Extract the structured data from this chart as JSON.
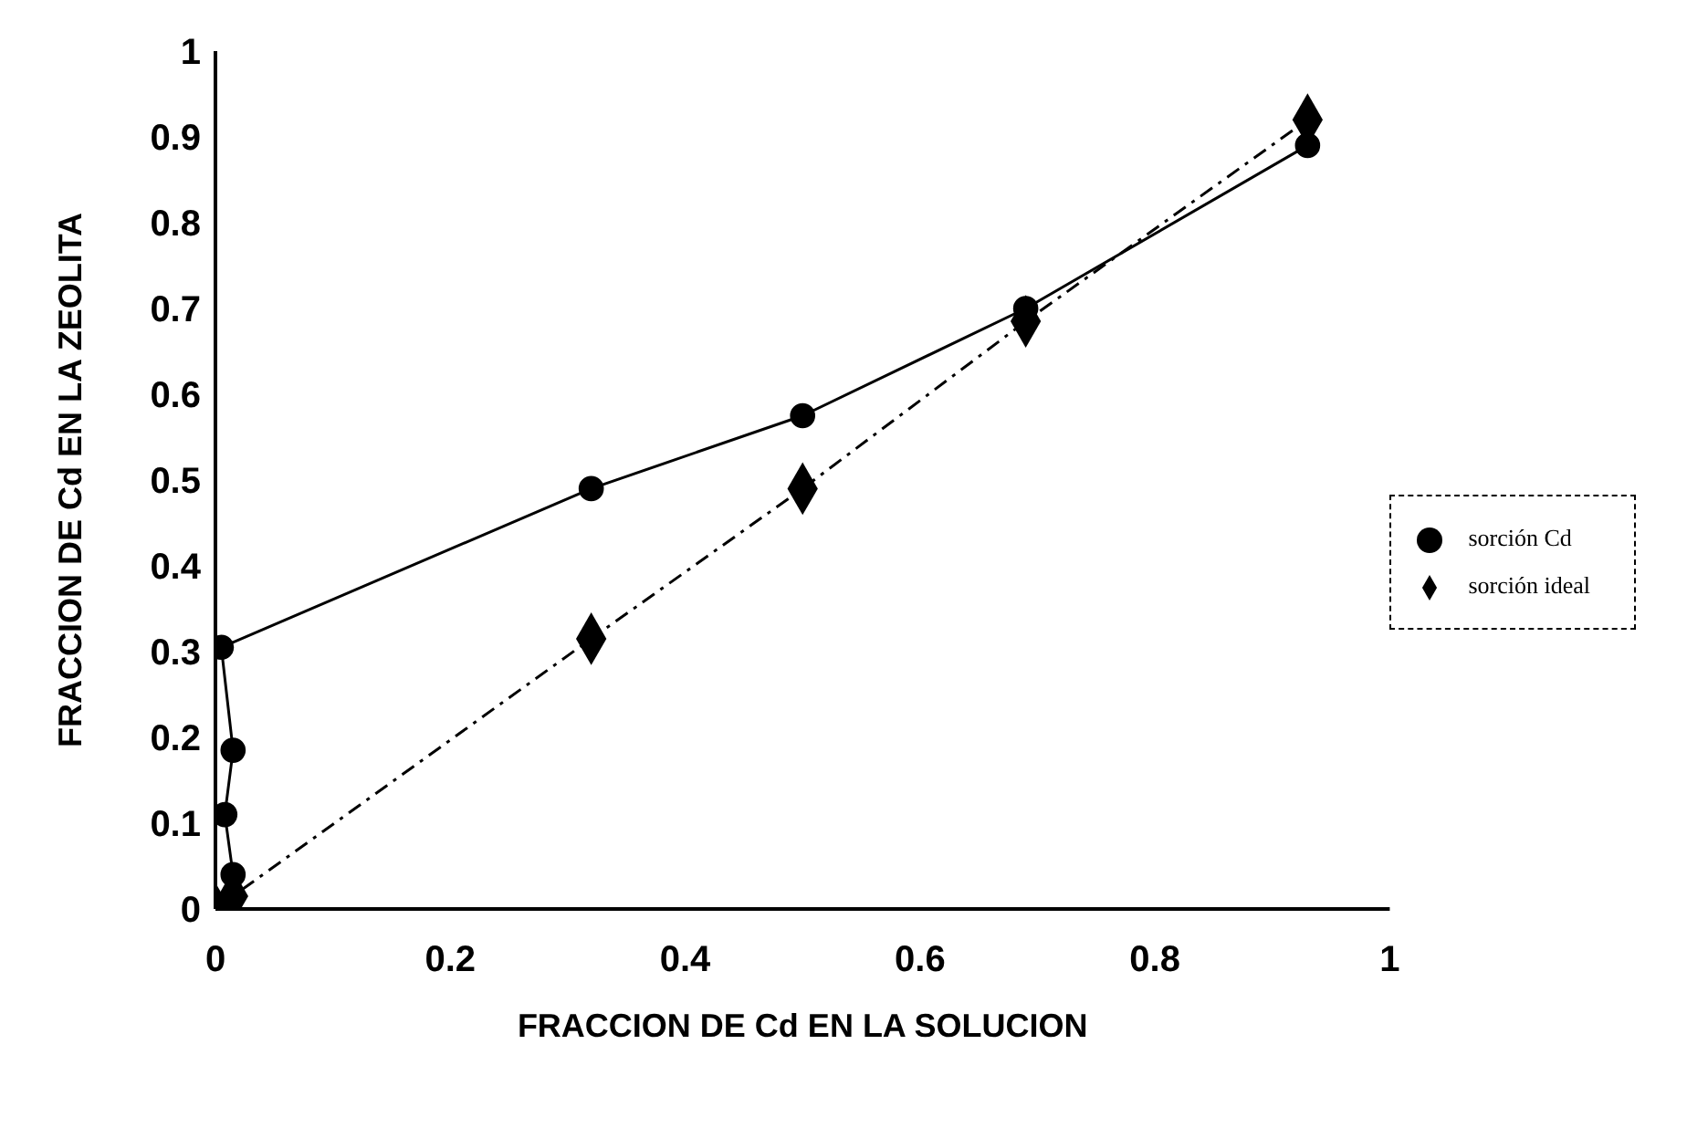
{
  "chart_data": {
    "type": "line",
    "xlabel": "FRACCION DE Cd EN LA SOLUCION",
    "ylabel": "FRACCION DE Cd EN LA ZEOLITA",
    "xlim": [
      0,
      1
    ],
    "xticks": [
      0,
      0.2,
      0.4,
      0.6,
      0.8,
      1
    ],
    "ylim": [
      0,
      1
    ],
    "yticks": [
      0,
      0.1,
      0.2,
      0.3,
      0.4,
      0.5,
      0.6,
      0.7,
      0.8,
      0.9,
      1
    ],
    "grid": false,
    "legend": "right",
    "series": [
      {
        "name": "sorción ideal",
        "color": "#000000",
        "marker": "diamond",
        "line_style": "dashed",
        "x": [
          0,
          0.015,
          0.32,
          0.5,
          0.69,
          0.93
        ],
        "values": [
          0,
          0.015,
          0.315,
          0.49,
          0.685,
          0.92
        ]
      },
      {
        "name": "sorción Cd",
        "color": "#000000",
        "marker": "circle",
        "line_style": "solid",
        "x": [
          0,
          0.015,
          0.008,
          0.015,
          0.005,
          0.32,
          0.5,
          0.69,
          0.93
        ],
        "values": [
          0,
          0.04,
          0.11,
          0.185,
          0.305,
          0.49,
          0.575,
          0.7,
          0.89
        ]
      }
    ]
  }
}
